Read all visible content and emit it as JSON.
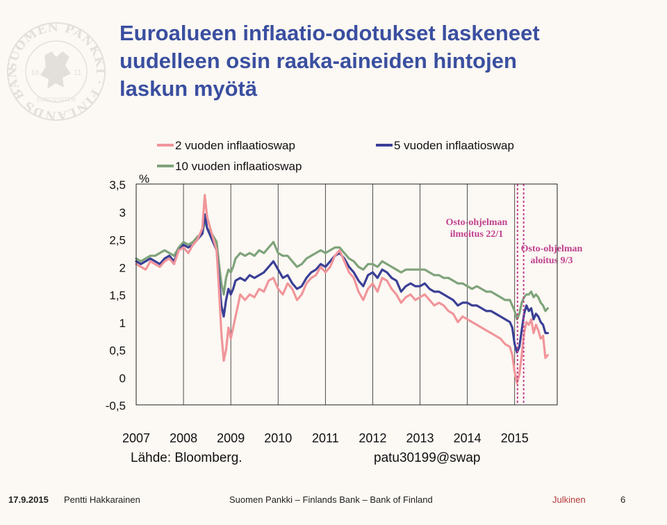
{
  "title": [
    "Euroalueen inflaatio-odotukset laskeneet",
    "uudelleen osin raaka-aineiden hintojen",
    "laskun myötä"
  ],
  "source": "Lähde: Bloomberg.",
  "code": "patu30199@swap",
  "footer": {
    "date": "17.9.2015",
    "author": "Pentti Hakkarainen",
    "org": "Suomen Pankki – Finlands Bank – Bank of Finland",
    "status": "Julkinen",
    "page": "6"
  },
  "logo": {
    "ring_text": "SUOMEN PANKKI · FINLANDS BANK ·",
    "year_left": "18",
    "year_right": "11",
    "eurosystem": "EUROSYSTEM"
  },
  "colors": {
    "y2": "#f0959a",
    "y5": "#3a3f96",
    "y10": "#7ea37a",
    "marker": "#c0408f",
    "text": "#111111",
    "title": "#3a4fa0"
  },
  "chart_data": {
    "type": "line",
    "unit": "%",
    "xlim": [
      2007.0,
      2015.9
    ],
    "ylim": [
      -0.5,
      3.5
    ],
    "yticks": [
      -0.5,
      0,
      0.5,
      1,
      1.5,
      2,
      2.5,
      3,
      3.5
    ],
    "ytick_labels": [
      "-0,5",
      "0",
      "0,5",
      "1",
      "1,5",
      "2",
      "2,5",
      "3",
      "3,5"
    ],
    "xtick_labels": [
      "2007",
      "2008",
      "2009",
      "2010",
      "2011",
      "2012",
      "2013",
      "2014",
      "2015"
    ],
    "vertical_grid_at": [
      2008,
      2009,
      2010,
      2011,
      2012,
      2013,
      2014,
      2015
    ],
    "markers": [
      {
        "x": 2015.06,
        "label_lines": [
          "Osto-ohjelman",
          "ilmoitus 22/1"
        ]
      },
      {
        "x": 2015.19,
        "label_lines": [
          "Osto-ohjelman",
          "aloitus 9/3"
        ]
      }
    ],
    "series": [
      {
        "name": "2 vuoden inflaatioswap",
        "key": "y2",
        "x": [
          2007.0,
          2007.1,
          2007.2,
          2007.3,
          2007.4,
          2007.5,
          2007.6,
          2007.7,
          2007.8,
          2007.9,
          2008.0,
          2008.1,
          2008.2,
          2008.3,
          2008.4,
          2008.45,
          2008.5,
          2008.6,
          2008.7,
          2008.75,
          2008.8,
          2008.85,
          2008.9,
          2008.95,
          2009.0,
          2009.05,
          2009.1,
          2009.2,
          2009.3,
          2009.4,
          2009.5,
          2009.6,
          2009.7,
          2009.8,
          2009.9,
          2010.0,
          2010.1,
          2010.2,
          2010.3,
          2010.4,
          2010.5,
          2010.6,
          2010.7,
          2010.8,
          2010.9,
          2011.0,
          2011.1,
          2011.2,
          2011.3,
          2011.4,
          2011.5,
          2011.6,
          2011.7,
          2011.8,
          2011.9,
          2012.0,
          2012.1,
          2012.2,
          2012.3,
          2012.4,
          2012.5,
          2012.6,
          2012.7,
          2012.8,
          2012.9,
          2013.0,
          2013.1,
          2013.2,
          2013.3,
          2013.4,
          2013.5,
          2013.6,
          2013.7,
          2013.8,
          2013.9,
          2014.0,
          2014.1,
          2014.2,
          2014.3,
          2014.4,
          2014.5,
          2014.6,
          2014.7,
          2014.8,
          2014.9,
          2014.95,
          2015.0,
          2015.05,
          2015.1,
          2015.15,
          2015.2,
          2015.25,
          2015.3,
          2015.35,
          2015.4,
          2015.45,
          2015.5,
          2015.55,
          2015.6,
          2015.65,
          2015.7
        ],
        "y": [
          2.05,
          2.0,
          1.95,
          2.1,
          2.05,
          2.0,
          2.1,
          2.15,
          2.05,
          2.3,
          2.35,
          2.25,
          2.4,
          2.5,
          2.7,
          3.3,
          2.9,
          2.6,
          2.3,
          1.6,
          0.8,
          0.3,
          0.5,
          0.9,
          0.7,
          0.9,
          1.1,
          1.5,
          1.4,
          1.5,
          1.45,
          1.6,
          1.55,
          1.75,
          1.8,
          1.6,
          1.5,
          1.7,
          1.6,
          1.4,
          1.5,
          1.7,
          1.8,
          1.85,
          2.0,
          1.9,
          2.0,
          2.2,
          2.3,
          2.1,
          1.9,
          1.8,
          1.55,
          1.4,
          1.6,
          1.7,
          1.55,
          1.8,
          1.75,
          1.6,
          1.5,
          1.35,
          1.45,
          1.5,
          1.4,
          1.45,
          1.5,
          1.4,
          1.3,
          1.35,
          1.3,
          1.2,
          1.15,
          1.0,
          1.1,
          1.05,
          1.0,
          0.95,
          0.9,
          0.85,
          0.8,
          0.75,
          0.7,
          0.6,
          0.55,
          0.4,
          0.1,
          -0.1,
          0.05,
          0.4,
          0.8,
          1.0,
          0.95,
          1.05,
          0.8,
          0.95,
          0.85,
          0.7,
          0.75,
          0.35,
          0.4
        ]
      },
      {
        "name": "5 vuoden inflaatioswap",
        "key": "y5",
        "x": [
          2007.0,
          2007.1,
          2007.2,
          2007.3,
          2007.4,
          2007.5,
          2007.6,
          2007.7,
          2007.8,
          2007.9,
          2008.0,
          2008.1,
          2008.2,
          2008.3,
          2008.4,
          2008.45,
          2008.5,
          2008.6,
          2008.7,
          2008.75,
          2008.8,
          2008.85,
          2008.9,
          2008.95,
          2009.0,
          2009.05,
          2009.1,
          2009.2,
          2009.3,
          2009.4,
          2009.5,
          2009.6,
          2009.7,
          2009.8,
          2009.9,
          2010.0,
          2010.1,
          2010.2,
          2010.3,
          2010.4,
          2010.5,
          2010.6,
          2010.7,
          2010.8,
          2010.9,
          2011.0,
          2011.1,
          2011.2,
          2011.3,
          2011.4,
          2011.5,
          2011.6,
          2011.7,
          2011.8,
          2011.9,
          2012.0,
          2012.1,
          2012.2,
          2012.3,
          2012.4,
          2012.5,
          2012.6,
          2012.7,
          2012.8,
          2012.9,
          2013.0,
          2013.1,
          2013.2,
          2013.3,
          2013.4,
          2013.5,
          2013.6,
          2013.7,
          2013.8,
          2013.9,
          2014.0,
          2014.1,
          2014.2,
          2014.3,
          2014.4,
          2014.5,
          2014.6,
          2014.7,
          2014.8,
          2014.9,
          2014.95,
          2015.0,
          2015.05,
          2015.1,
          2015.15,
          2015.2,
          2015.25,
          2015.3,
          2015.35,
          2015.4,
          2015.45,
          2015.5,
          2015.55,
          2015.6,
          2015.65,
          2015.7
        ],
        "y": [
          2.1,
          2.05,
          2.1,
          2.15,
          2.1,
          2.05,
          2.15,
          2.2,
          2.1,
          2.3,
          2.4,
          2.35,
          2.4,
          2.5,
          2.6,
          2.95,
          2.7,
          2.5,
          2.3,
          1.8,
          1.3,
          1.1,
          1.4,
          1.6,
          1.5,
          1.6,
          1.75,
          1.8,
          1.75,
          1.85,
          1.8,
          1.85,
          1.9,
          2.0,
          2.1,
          1.95,
          1.8,
          1.85,
          1.7,
          1.6,
          1.65,
          1.8,
          1.9,
          1.95,
          2.05,
          2.0,
          2.1,
          2.2,
          2.25,
          2.15,
          2.0,
          1.9,
          1.75,
          1.65,
          1.85,
          1.9,
          1.8,
          1.95,
          1.9,
          1.8,
          1.75,
          1.55,
          1.65,
          1.7,
          1.65,
          1.65,
          1.7,
          1.6,
          1.55,
          1.55,
          1.5,
          1.45,
          1.4,
          1.3,
          1.35,
          1.35,
          1.3,
          1.3,
          1.25,
          1.2,
          1.2,
          1.15,
          1.1,
          1.05,
          1.0,
          0.9,
          0.6,
          0.45,
          0.55,
          0.85,
          1.15,
          1.3,
          1.2,
          1.25,
          1.05,
          1.15,
          1.1,
          1.0,
          0.95,
          0.8,
          0.8
        ]
      },
      {
        "name": "10 vuoden inflaatioswap",
        "key": "y10",
        "x": [
          2007.0,
          2007.1,
          2007.2,
          2007.3,
          2007.4,
          2007.5,
          2007.6,
          2007.7,
          2007.8,
          2007.9,
          2008.0,
          2008.1,
          2008.2,
          2008.3,
          2008.4,
          2008.45,
          2008.5,
          2008.6,
          2008.7,
          2008.75,
          2008.8,
          2008.85,
          2008.9,
          2008.95,
          2009.0,
          2009.05,
          2009.1,
          2009.2,
          2009.3,
          2009.4,
          2009.5,
          2009.6,
          2009.7,
          2009.8,
          2009.9,
          2010.0,
          2010.1,
          2010.2,
          2010.3,
          2010.4,
          2010.5,
          2010.6,
          2010.7,
          2010.8,
          2010.9,
          2011.0,
          2011.1,
          2011.2,
          2011.3,
          2011.4,
          2011.5,
          2011.6,
          2011.7,
          2011.8,
          2011.9,
          2012.0,
          2012.1,
          2012.2,
          2012.3,
          2012.4,
          2012.5,
          2012.6,
          2012.7,
          2012.8,
          2012.9,
          2013.0,
          2013.1,
          2013.2,
          2013.3,
          2013.4,
          2013.5,
          2013.6,
          2013.7,
          2013.8,
          2013.9,
          2014.0,
          2014.1,
          2014.2,
          2014.3,
          2014.4,
          2014.5,
          2014.6,
          2014.7,
          2014.8,
          2014.9,
          2014.95,
          2015.0,
          2015.05,
          2015.1,
          2015.15,
          2015.2,
          2015.25,
          2015.3,
          2015.35,
          2015.4,
          2015.45,
          2015.5,
          2015.55,
          2015.6,
          2015.65,
          2015.7
        ],
        "y": [
          2.15,
          2.1,
          2.15,
          2.2,
          2.2,
          2.25,
          2.3,
          2.25,
          2.2,
          2.35,
          2.45,
          2.4,
          2.45,
          2.55,
          2.6,
          2.85,
          2.7,
          2.6,
          2.45,
          2.05,
          1.7,
          1.5,
          1.8,
          1.95,
          1.9,
          2.0,
          2.15,
          2.25,
          2.2,
          2.25,
          2.2,
          2.3,
          2.25,
          2.35,
          2.45,
          2.25,
          2.2,
          2.2,
          2.1,
          2.0,
          2.05,
          2.15,
          2.2,
          2.25,
          2.3,
          2.25,
          2.3,
          2.35,
          2.35,
          2.25,
          2.15,
          2.1,
          2.0,
          1.95,
          2.05,
          2.05,
          2.0,
          2.1,
          2.05,
          2.0,
          1.95,
          1.9,
          1.95,
          1.95,
          1.95,
          1.95,
          1.95,
          1.9,
          1.85,
          1.85,
          1.8,
          1.8,
          1.75,
          1.7,
          1.7,
          1.65,
          1.6,
          1.65,
          1.6,
          1.55,
          1.55,
          1.5,
          1.45,
          1.4,
          1.4,
          1.3,
          1.2,
          1.05,
          1.15,
          1.35,
          1.45,
          1.5,
          1.5,
          1.55,
          1.45,
          1.5,
          1.45,
          1.35,
          1.3,
          1.2,
          1.25
        ]
      }
    ]
  }
}
